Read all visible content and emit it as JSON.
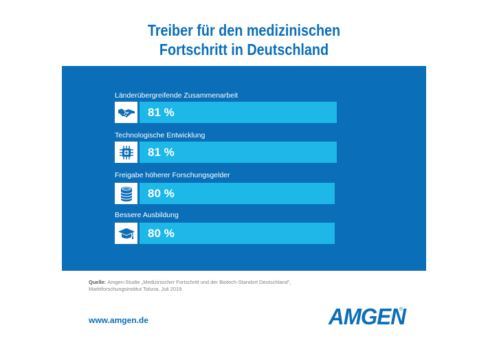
{
  "title_lines": [
    "Treiber für den medizinischen",
    "Fortschritt in Deutschland"
  ],
  "chart_data": {
    "type": "bar",
    "orientation": "horizontal",
    "categories": [
      "Länderübergreifende Zusammenarbeit",
      "Technologische Entwicklung",
      "Freigabe höherer Forschungsgelder",
      "Bessere Ausbildung"
    ],
    "values": [
      81,
      81,
      80,
      80
    ],
    "value_labels": [
      "81 %",
      "81 %",
      "80 %",
      "80 %"
    ],
    "icons": [
      "handshake-icon",
      "microchip-icon",
      "coins-icon",
      "graduation-cap-icon"
    ],
    "unit": "%",
    "grid": false,
    "colors": {
      "panel": "#0a6fb8",
      "bar": "#1db7e8",
      "icon_box": "#ffffff"
    }
  },
  "source": {
    "label": "Quelle:",
    "text": "Amgen-Studie „Medizinischer Fortschritt und der Biotech-Standort Deutschland“, Marktforschungsinstitut Toluna, Juli 2019"
  },
  "footer": {
    "url": "www.amgen.de",
    "logo": "AMGEN",
    "logo_mark": "®"
  }
}
